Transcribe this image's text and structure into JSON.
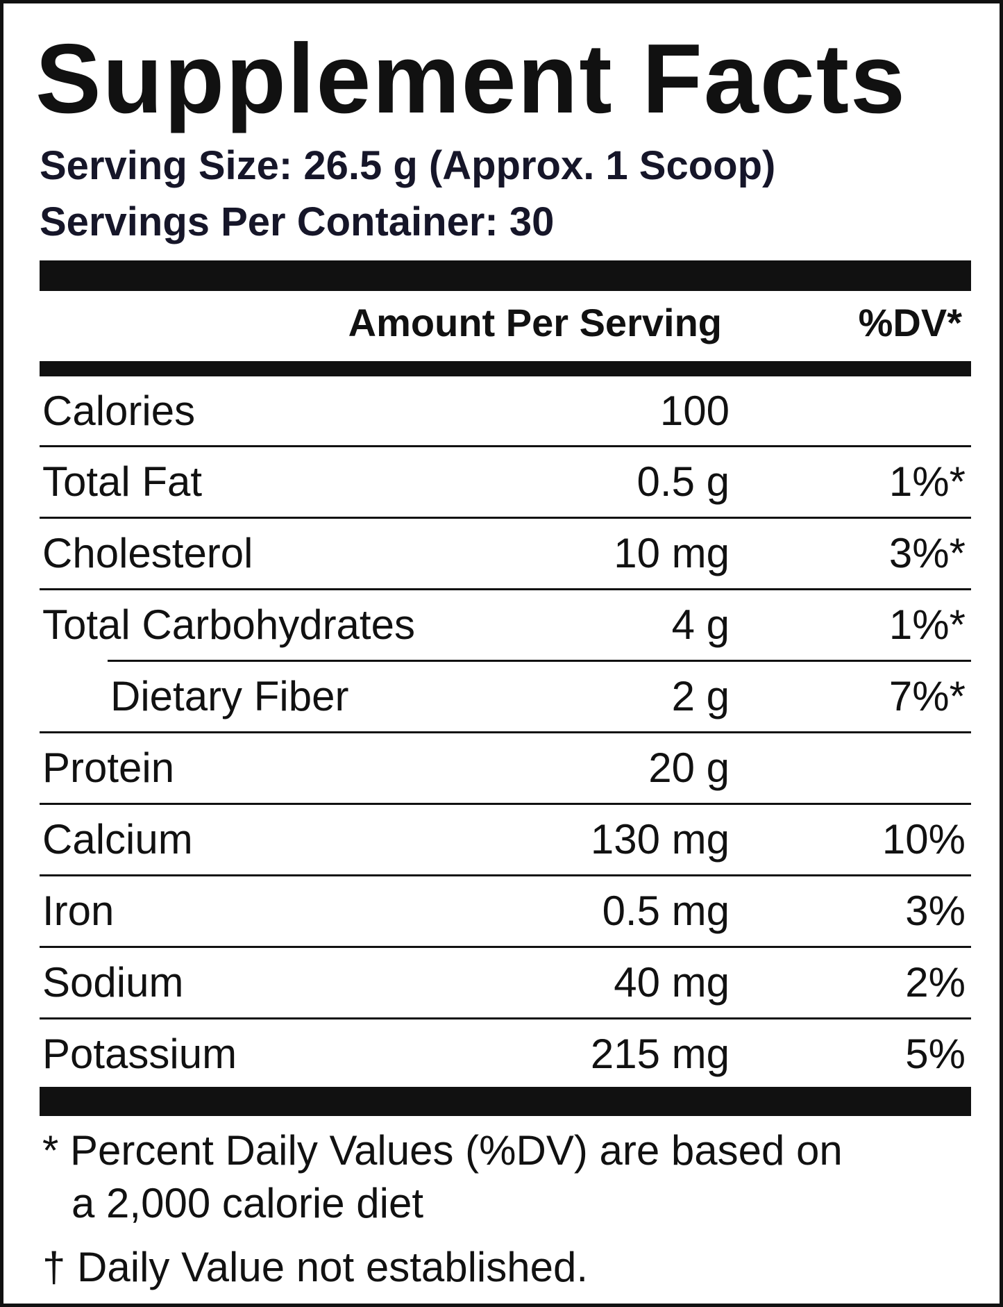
{
  "label": {
    "title": "Supplement Facts",
    "serving_size": "Serving Size: 26.5 g (Approx. 1 Scoop)",
    "servings_per_container": "Servings Per Container: 30"
  },
  "header": {
    "amount": "Amount Per Serving",
    "dv": "%DV*"
  },
  "rows": [
    {
      "name": "Calories",
      "amount": "100",
      "dv": ""
    },
    {
      "name": "Total Fat",
      "amount": "0.5 g",
      "dv": "1%*"
    },
    {
      "name": "Cholesterol",
      "amount": "10 mg",
      "dv": "3%*"
    },
    {
      "name": "Total Carbohydrates",
      "amount": "4 g",
      "dv": "1%*"
    },
    {
      "name": "Dietary Fiber",
      "amount": "2 g",
      "dv": "7%*"
    },
    {
      "name": "Protein",
      "amount": "20 g",
      "dv": ""
    },
    {
      "name": "Calcium",
      "amount": "130 mg",
      "dv": "10%"
    },
    {
      "name": "Iron",
      "amount": "0.5 mg",
      "dv": "3%"
    },
    {
      "name": "Sodium",
      "amount": "40 mg",
      "dv": "2%"
    },
    {
      "name": "Potassium",
      "amount": "215 mg",
      "dv": "5%"
    }
  ],
  "footnotes": {
    "line1": "* Percent Daily Values (%DV) are based on",
    "line2": "a 2,000 calorie diet",
    "line3": "† Daily Value not established."
  }
}
